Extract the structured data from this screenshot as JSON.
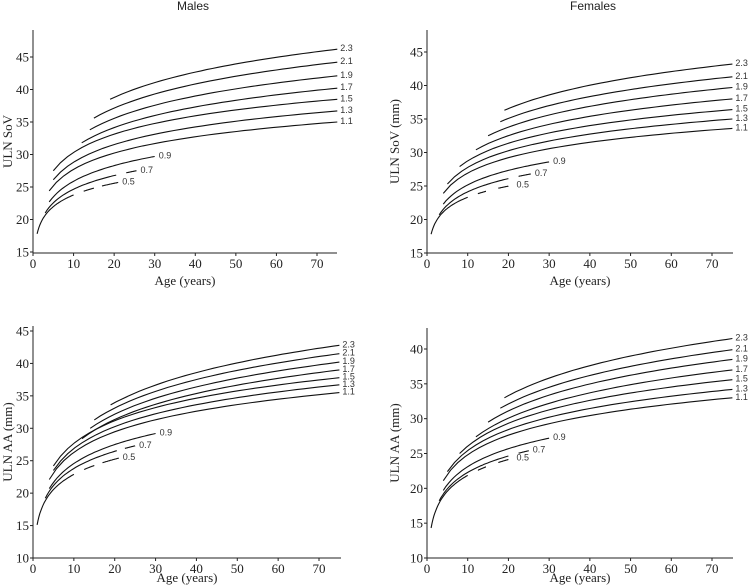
{
  "chart_data": [
    {
      "type": "line",
      "id": "males-sov",
      "title": "Males",
      "xlabel": "Age (years)",
      "ylabel": "ULN SoV",
      "xlim": [
        0,
        75
      ],
      "ylim": [
        15,
        48
      ],
      "xticks": [
        0,
        10,
        20,
        30,
        40,
        50,
        60,
        70
      ],
      "yticks": [
        15,
        20,
        25,
        30,
        35,
        40,
        45
      ],
      "grid": false,
      "series": [
        {
          "name": "2.3",
          "start": [
            19,
            38.5
          ],
          "end": [
            75,
            46.2
          ],
          "solid_until": 75,
          "dashes": []
        },
        {
          "name": "2.1",
          "start": [
            15,
            35.6
          ],
          "end": [
            75,
            44.2
          ],
          "solid_until": 75,
          "dashes": []
        },
        {
          "name": "1.9",
          "start": [
            14,
            33.8
          ],
          "end": [
            75,
            42.1
          ],
          "solid_until": 75,
          "dashes": []
        },
        {
          "name": "1.7",
          "start": [
            12,
            31.8
          ],
          "end": [
            75,
            40.2
          ],
          "solid_until": 75,
          "dashes": []
        },
        {
          "name": "1.5",
          "start": [
            5,
            27.5
          ],
          "end": [
            75,
            38.5
          ],
          "solid_until": 75,
          "dashes": []
        },
        {
          "name": "1.3",
          "start": [
            5,
            26.1
          ],
          "end": [
            75,
            36.7
          ],
          "solid_until": 75,
          "dashes": []
        },
        {
          "name": "1.1",
          "start": [
            4,
            24.4
          ],
          "end": [
            75,
            35.0
          ],
          "solid_until": 75,
          "dashes": []
        },
        {
          "name": "0.9",
          "start": [
            4,
            22.7
          ],
          "end": [
            30,
            29.7
          ],
          "solid_until": 30,
          "dashes": []
        },
        {
          "name": "0.7",
          "start": [
            3,
            21.0
          ],
          "end": [
            25.5,
            27.5
          ],
          "solid_until": 20.5,
          "dashes": [
            [
              23,
              25.5
            ]
          ]
        },
        {
          "name": "0.5",
          "start": [
            1,
            17.8
          ],
          "end": [
            21,
            25.7
          ],
          "solid_until": 10,
          "dashes": [
            [
              12.5,
              15
            ],
            [
              17,
              21
            ]
          ]
        }
      ]
    },
    {
      "type": "line",
      "id": "females-sov",
      "title": "Females",
      "xlabel": "Age (years)",
      "ylabel": "ULN SoV (mm)",
      "xlim": [
        0,
        75
      ],
      "ylim": [
        15,
        48
      ],
      "xticks": [
        0,
        10,
        20,
        30,
        40,
        50,
        60,
        70
      ],
      "yticks": [
        15,
        20,
        25,
        30,
        35,
        40,
        45
      ],
      "grid": false,
      "series": [
        {
          "name": "2.3",
          "start": [
            19,
            36.3
          ],
          "end": [
            75,
            43.2
          ],
          "solid_until": 75,
          "dashes": []
        },
        {
          "name": "2.1",
          "start": [
            18,
            34.6
          ],
          "end": [
            75,
            41.3
          ],
          "solid_until": 75,
          "dashes": []
        },
        {
          "name": "1.9",
          "start": [
            15,
            32.5
          ],
          "end": [
            75,
            39.7
          ],
          "solid_until": 75,
          "dashes": []
        },
        {
          "name": "1.7",
          "start": [
            12,
            30.4
          ],
          "end": [
            75,
            38.0
          ],
          "solid_until": 75,
          "dashes": []
        },
        {
          "name": "1.5",
          "start": [
            8,
            27.9
          ],
          "end": [
            75,
            36.4
          ],
          "solid_until": 75,
          "dashes": []
        },
        {
          "name": "1.3",
          "start": [
            5,
            25.3
          ],
          "end": [
            75,
            35.0
          ],
          "solid_until": 75,
          "dashes": []
        },
        {
          "name": "1.1",
          "start": [
            4,
            23.9
          ],
          "end": [
            75,
            33.6
          ],
          "solid_until": 75,
          "dashes": []
        },
        {
          "name": "0.9",
          "start": [
            4,
            22.3
          ],
          "end": [
            30,
            28.6
          ],
          "solid_until": 30,
          "dashes": []
        },
        {
          "name": "0.7",
          "start": [
            3,
            20.7
          ],
          "end": [
            25.5,
            26.8
          ],
          "solid_until": 20,
          "dashes": [
            [
              22.5,
              25.5
            ]
          ]
        },
        {
          "name": "0.5",
          "start": [
            1,
            17.8
          ],
          "end": [
            21,
            25.1
          ],
          "solid_until": 10,
          "dashes": [
            [
              12.5,
              14.5
            ],
            [
              17.5,
              20
            ]
          ]
        }
      ]
    },
    {
      "type": "line",
      "id": "males-aa",
      "title": "",
      "xlabel": "Age (years)",
      "ylabel": "ULN AA (mm)",
      "xlim": [
        0,
        75
      ],
      "ylim": [
        10,
        45
      ],
      "xticks": [
        0,
        10,
        20,
        30,
        40,
        50,
        60,
        70
      ],
      "yticks": [
        10,
        15,
        20,
        25,
        30,
        35,
        40,
        45
      ],
      "grid": false,
      "series": [
        {
          "name": "2.3",
          "start": [
            19,
            33.6
          ],
          "end": [
            75,
            42.8
          ],
          "solid_until": 75,
          "dashes": []
        },
        {
          "name": "2.1",
          "start": [
            15,
            31.3
          ],
          "end": [
            75,
            41.5
          ],
          "solid_until": 75,
          "dashes": []
        },
        {
          "name": "1.9",
          "start": [
            14,
            30.0
          ],
          "end": [
            75,
            40.2
          ],
          "solid_until": 75,
          "dashes": []
        },
        {
          "name": "1.7",
          "start": [
            12,
            28.4
          ],
          "end": [
            75,
            39.0
          ],
          "solid_until": 75,
          "dashes": []
        },
        {
          "name": "1.5",
          "start": [
            5,
            24.2
          ],
          "end": [
            75,
            37.8
          ],
          "solid_until": 75,
          "dashes": []
        },
        {
          "name": "1.3",
          "start": [
            5,
            23.5
          ],
          "end": [
            75,
            36.7
          ],
          "solid_until": 75,
          "dashes": []
        },
        {
          "name": "1.1",
          "start": [
            4,
            22.1
          ],
          "end": [
            75,
            35.5
          ],
          "solid_until": 75,
          "dashes": []
        },
        {
          "name": "0.9",
          "start": [
            4,
            20.7
          ],
          "end": [
            30,
            29.2
          ],
          "solid_until": 30,
          "dashes": []
        },
        {
          "name": "0.7",
          "start": [
            3,
            19.2
          ],
          "end": [
            25,
            27.3
          ],
          "solid_until": 20.5,
          "dashes": [
            [
              22.5,
              25
            ]
          ]
        },
        {
          "name": "0.5",
          "start": [
            1,
            15.1
          ],
          "end": [
            21,
            25.4
          ],
          "solid_until": 10,
          "dashes": [
            [
              12.5,
              15
            ],
            [
              17,
              21
            ]
          ]
        }
      ]
    },
    {
      "type": "line",
      "id": "females-aa",
      "title": "",
      "xlabel": "Age (years)",
      "ylabel": "ULN AA (mm)",
      "xlim": [
        0,
        75
      ],
      "ylim": [
        10,
        43
      ],
      "xticks": [
        0,
        10,
        20,
        30,
        40,
        50,
        60,
        70
      ],
      "yticks": [
        10,
        15,
        20,
        25,
        30,
        35,
        40
      ],
      "grid": false,
      "series": [
        {
          "name": "2.3",
          "start": [
            19,
            33.0
          ],
          "end": [
            75,
            41.5
          ],
          "solid_until": 75,
          "dashes": []
        },
        {
          "name": "2.1",
          "start": [
            18,
            31.5
          ],
          "end": [
            75,
            39.9
          ],
          "solid_until": 75,
          "dashes": []
        },
        {
          "name": "1.9",
          "start": [
            15,
            29.5
          ],
          "end": [
            75,
            38.5
          ],
          "solid_until": 75,
          "dashes": []
        },
        {
          "name": "1.7",
          "start": [
            12,
            27.4
          ],
          "end": [
            75,
            37.0
          ],
          "solid_until": 75,
          "dashes": []
        },
        {
          "name": "1.5",
          "start": [
            8,
            25.0
          ],
          "end": [
            75,
            35.6
          ],
          "solid_until": 75,
          "dashes": []
        },
        {
          "name": "1.3",
          "start": [
            5,
            22.4
          ],
          "end": [
            75,
            34.2
          ],
          "solid_until": 75,
          "dashes": []
        },
        {
          "name": "1.1",
          "start": [
            4,
            21.1
          ],
          "end": [
            75,
            33.0
          ],
          "solid_until": 75,
          "dashes": []
        },
        {
          "name": "0.9",
          "start": [
            4,
            19.7
          ],
          "end": [
            30,
            27.2
          ],
          "solid_until": 30,
          "dashes": []
        },
        {
          "name": "0.7",
          "start": [
            3,
            18.2
          ],
          "end": [
            25,
            25.4
          ],
          "solid_until": 20,
          "dashes": [
            [
              22.5,
              25
            ]
          ]
        },
        {
          "name": "0.5",
          "start": [
            1,
            14.3
          ],
          "end": [
            21,
            24.3
          ],
          "solid_until": 10,
          "dashes": [
            [
              12.5,
              14.5
            ],
            [
              17.5,
              20
            ]
          ]
        }
      ]
    }
  ]
}
